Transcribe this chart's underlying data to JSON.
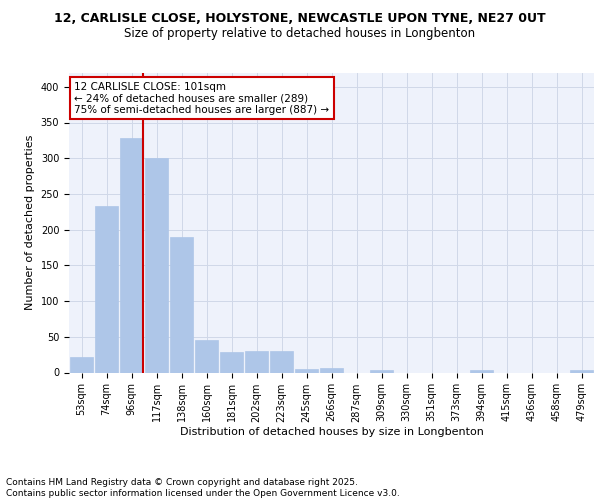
{
  "title_line1": "12, CARLISLE CLOSE, HOLYSTONE, NEWCASTLE UPON TYNE, NE27 0UT",
  "title_line2": "Size of property relative to detached houses in Longbenton",
  "xlabel": "Distribution of detached houses by size in Longbenton",
  "ylabel": "Number of detached properties",
  "categories": [
    "53sqm",
    "74sqm",
    "96sqm",
    "117sqm",
    "138sqm",
    "160sqm",
    "181sqm",
    "202sqm",
    "223sqm",
    "245sqm",
    "266sqm",
    "287sqm",
    "309sqm",
    "330sqm",
    "351sqm",
    "373sqm",
    "394sqm",
    "415sqm",
    "436sqm",
    "458sqm",
    "479sqm"
  ],
  "values": [
    22,
    233,
    329,
    300,
    190,
    46,
    29,
    30,
    30,
    5,
    6,
    0,
    3,
    0,
    0,
    0,
    4,
    0,
    0,
    0,
    3
  ],
  "bar_color": "#aec6e8",
  "bar_edge_color": "#aec6e8",
  "grid_color": "#d0d8e8",
  "background_color": "#eef2fb",
  "vline_x_index": 2,
  "vline_color": "#cc0000",
  "annotation_text": "12 CARLISLE CLOSE: 101sqm\n← 24% of detached houses are smaller (289)\n75% of semi-detached houses are larger (887) →",
  "annotation_box_color": "white",
  "annotation_box_edge": "#cc0000",
  "ylim": [
    0,
    420
  ],
  "yticks": [
    0,
    50,
    100,
    150,
    200,
    250,
    300,
    350,
    400
  ],
  "footer": "Contains HM Land Registry data © Crown copyright and database right 2025.\nContains public sector information licensed under the Open Government Licence v3.0.",
  "footer_fontsize": 6.5,
  "title1_fontsize": 9,
  "title2_fontsize": 8.5,
  "xlabel_fontsize": 8,
  "ylabel_fontsize": 8,
  "tick_fontsize": 7,
  "annot_fontsize": 7.5
}
